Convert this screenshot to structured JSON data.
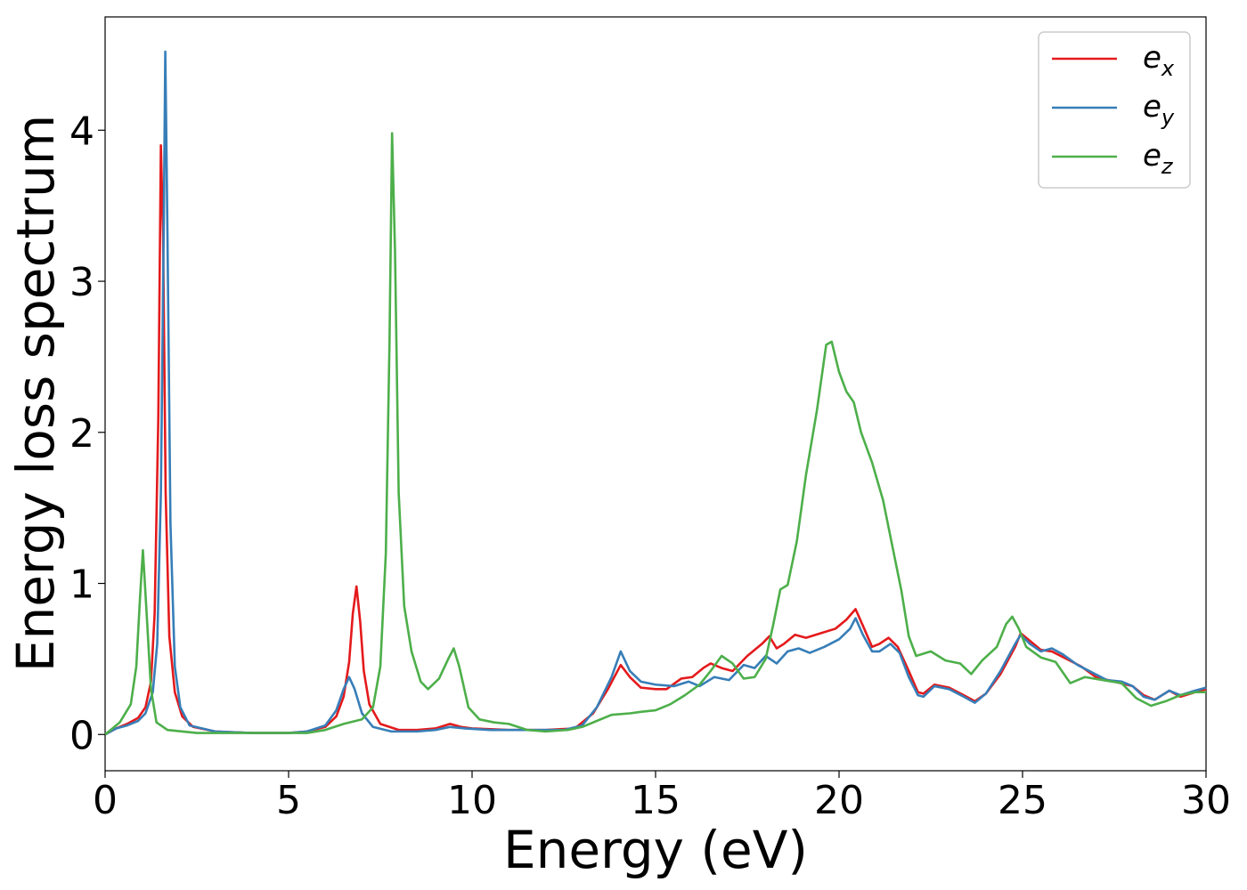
{
  "chart_data": {
    "type": "line",
    "title": "",
    "xlabel": "Energy (eV)",
    "ylabel": "Energy loss spectrum",
    "xlim": [
      0,
      30
    ],
    "ylim": [
      -0.24,
      4.75
    ],
    "xticks": [
      0,
      5,
      10,
      15,
      20,
      25,
      30
    ],
    "yticks": [
      0,
      1,
      2,
      3,
      4
    ],
    "grid": false,
    "legend_position": "top-right",
    "series": [
      {
        "name": "e_x",
        "label_base": "e",
        "label_sub": "x",
        "color": "#e41a1c",
        "points": [
          [
            0,
            0
          ],
          [
            0.3,
            0.04
          ],
          [
            0.6,
            0.07
          ],
          [
            0.9,
            0.11
          ],
          [
            1.1,
            0.18
          ],
          [
            1.25,
            0.35
          ],
          [
            1.35,
            0.8
          ],
          [
            1.45,
            2.1
          ],
          [
            1.52,
            3.9
          ],
          [
            1.58,
            3.3
          ],
          [
            1.65,
            1.6
          ],
          [
            1.75,
            0.65
          ],
          [
            1.9,
            0.28
          ],
          [
            2.1,
            0.12
          ],
          [
            2.4,
            0.05
          ],
          [
            3,
            0.02
          ],
          [
            4,
            0.01
          ],
          [
            5,
            0.01
          ],
          [
            5.5,
            0.02
          ],
          [
            6,
            0.05
          ],
          [
            6.3,
            0.12
          ],
          [
            6.5,
            0.25
          ],
          [
            6.65,
            0.48
          ],
          [
            6.75,
            0.8
          ],
          [
            6.85,
            0.98
          ],
          [
            6.95,
            0.75
          ],
          [
            7.05,
            0.42
          ],
          [
            7.2,
            0.2
          ],
          [
            7.5,
            0.07
          ],
          [
            8,
            0.03
          ],
          [
            8.5,
            0.03
          ],
          [
            9,
            0.04
          ],
          [
            9.4,
            0.07
          ],
          [
            9.7,
            0.05
          ],
          [
            10,
            0.04
          ],
          [
            11,
            0.03
          ],
          [
            12,
            0.03
          ],
          [
            12.8,
            0.04
          ],
          [
            13.3,
            0.14
          ],
          [
            13.7,
            0.3
          ],
          [
            14.05,
            0.46
          ],
          [
            14.3,
            0.38
          ],
          [
            14.6,
            0.31
          ],
          [
            15,
            0.3
          ],
          [
            15.3,
            0.3
          ],
          [
            15.7,
            0.37
          ],
          [
            16,
            0.38
          ],
          [
            16.3,
            0.44
          ],
          [
            16.5,
            0.47
          ],
          [
            16.8,
            0.44
          ],
          [
            17.1,
            0.42
          ],
          [
            17.5,
            0.52
          ],
          [
            17.9,
            0.6
          ],
          [
            18.1,
            0.65
          ],
          [
            18.3,
            0.57
          ],
          [
            18.5,
            0.6
          ],
          [
            18.8,
            0.66
          ],
          [
            19.1,
            0.64
          ],
          [
            19.5,
            0.67
          ],
          [
            19.9,
            0.7
          ],
          [
            20.2,
            0.76
          ],
          [
            20.45,
            0.83
          ],
          [
            20.65,
            0.72
          ],
          [
            20.9,
            0.58
          ],
          [
            21.1,
            0.6
          ],
          [
            21.35,
            0.64
          ],
          [
            21.6,
            0.58
          ],
          [
            21.9,
            0.42
          ],
          [
            22.15,
            0.28
          ],
          [
            22.3,
            0.27
          ],
          [
            22.6,
            0.33
          ],
          [
            23,
            0.31
          ],
          [
            23.4,
            0.26
          ],
          [
            23.7,
            0.22
          ],
          [
            24,
            0.27
          ],
          [
            24.4,
            0.4
          ],
          [
            24.8,
            0.58
          ],
          [
            24.95,
            0.67
          ],
          [
            25.2,
            0.62
          ],
          [
            25.5,
            0.56
          ],
          [
            25.8,
            0.55
          ],
          [
            26.2,
            0.5
          ],
          [
            26.6,
            0.45
          ],
          [
            27,
            0.38
          ],
          [
            27.5,
            0.35
          ],
          [
            28,
            0.32
          ],
          [
            28.3,
            0.26
          ],
          [
            28.6,
            0.23
          ],
          [
            29,
            0.29
          ],
          [
            29.3,
            0.25
          ],
          [
            29.7,
            0.28
          ],
          [
            30,
            0.3
          ]
        ]
      },
      {
        "name": "e_y",
        "label_base": "e",
        "label_sub": "y",
        "color": "#377eb8",
        "points": [
          [
            0,
            0
          ],
          [
            0.3,
            0.04
          ],
          [
            0.6,
            0.06
          ],
          [
            0.9,
            0.09
          ],
          [
            1.1,
            0.14
          ],
          [
            1.3,
            0.28
          ],
          [
            1.42,
            0.6
          ],
          [
            1.52,
            1.6
          ],
          [
            1.6,
            3.4
          ],
          [
            1.64,
            4.52
          ],
          [
            1.7,
            3.3
          ],
          [
            1.78,
            1.4
          ],
          [
            1.9,
            0.45
          ],
          [
            2.05,
            0.18
          ],
          [
            2.3,
            0.06
          ],
          [
            3,
            0.02
          ],
          [
            4,
            0.01
          ],
          [
            5,
            0.01
          ],
          [
            5.5,
            0.02
          ],
          [
            6,
            0.06
          ],
          [
            6.3,
            0.16
          ],
          [
            6.5,
            0.3
          ],
          [
            6.65,
            0.38
          ],
          [
            6.8,
            0.3
          ],
          [
            7,
            0.14
          ],
          [
            7.3,
            0.05
          ],
          [
            7.8,
            0.02
          ],
          [
            8.5,
            0.02
          ],
          [
            9,
            0.03
          ],
          [
            9.4,
            0.05
          ],
          [
            9.8,
            0.04
          ],
          [
            10.5,
            0.03
          ],
          [
            11.5,
            0.03
          ],
          [
            12.5,
            0.03
          ],
          [
            13,
            0.06
          ],
          [
            13.4,
            0.18
          ],
          [
            13.8,
            0.38
          ],
          [
            14.05,
            0.55
          ],
          [
            14.3,
            0.42
          ],
          [
            14.6,
            0.35
          ],
          [
            15,
            0.33
          ],
          [
            15.5,
            0.32
          ],
          [
            15.9,
            0.35
          ],
          [
            16.2,
            0.32
          ],
          [
            16.6,
            0.38
          ],
          [
            17,
            0.36
          ],
          [
            17.4,
            0.46
          ],
          [
            17.7,
            0.44
          ],
          [
            18,
            0.52
          ],
          [
            18.3,
            0.47
          ],
          [
            18.6,
            0.55
          ],
          [
            18.9,
            0.57
          ],
          [
            19.2,
            0.54
          ],
          [
            19.6,
            0.58
          ],
          [
            20,
            0.63
          ],
          [
            20.3,
            0.7
          ],
          [
            20.45,
            0.77
          ],
          [
            20.65,
            0.66
          ],
          [
            20.9,
            0.55
          ],
          [
            21.1,
            0.55
          ],
          [
            21.4,
            0.6
          ],
          [
            21.65,
            0.54
          ],
          [
            21.9,
            0.38
          ],
          [
            22.15,
            0.26
          ],
          [
            22.3,
            0.25
          ],
          [
            22.6,
            0.32
          ],
          [
            23,
            0.3
          ],
          [
            23.4,
            0.25
          ],
          [
            23.7,
            0.21
          ],
          [
            24,
            0.27
          ],
          [
            24.4,
            0.42
          ],
          [
            24.8,
            0.6
          ],
          [
            24.95,
            0.66
          ],
          [
            25.2,
            0.6
          ],
          [
            25.5,
            0.55
          ],
          [
            25.8,
            0.57
          ],
          [
            26.1,
            0.53
          ],
          [
            26.5,
            0.46
          ],
          [
            26.9,
            0.41
          ],
          [
            27.3,
            0.36
          ],
          [
            27.7,
            0.35
          ],
          [
            28,
            0.32
          ],
          [
            28.3,
            0.25
          ],
          [
            28.6,
            0.23
          ],
          [
            29,
            0.29
          ],
          [
            29.3,
            0.26
          ],
          [
            29.7,
            0.29
          ],
          [
            30,
            0.31
          ]
        ]
      },
      {
        "name": "e_z",
        "label_base": "e",
        "label_sub": "z",
        "color": "#4daf4a",
        "points": [
          [
            0,
            0
          ],
          [
            0.4,
            0.08
          ],
          [
            0.7,
            0.2
          ],
          [
            0.85,
            0.45
          ],
          [
            0.95,
            0.9
          ],
          [
            1.03,
            1.22
          ],
          [
            1.12,
            0.85
          ],
          [
            1.25,
            0.3
          ],
          [
            1.4,
            0.08
          ],
          [
            1.7,
            0.03
          ],
          [
            2.5,
            0.01
          ],
          [
            4,
            0.01
          ],
          [
            5.5,
            0.01
          ],
          [
            6,
            0.03
          ],
          [
            6.5,
            0.07
          ],
          [
            7,
            0.1
          ],
          [
            7.3,
            0.18
          ],
          [
            7.5,
            0.45
          ],
          [
            7.65,
            1.2
          ],
          [
            7.75,
            2.6
          ],
          [
            7.82,
            3.98
          ],
          [
            7.9,
            3.2
          ],
          [
            8,
            1.6
          ],
          [
            8.15,
            0.85
          ],
          [
            8.35,
            0.55
          ],
          [
            8.6,
            0.35
          ],
          [
            8.8,
            0.3
          ],
          [
            9.1,
            0.37
          ],
          [
            9.35,
            0.5
          ],
          [
            9.5,
            0.57
          ],
          [
            9.65,
            0.45
          ],
          [
            9.9,
            0.18
          ],
          [
            10.2,
            0.1
          ],
          [
            10.6,
            0.08
          ],
          [
            11,
            0.07
          ],
          [
            11.5,
            0.03
          ],
          [
            12,
            0.02
          ],
          [
            12.6,
            0.03
          ],
          [
            13,
            0.05
          ],
          [
            13.4,
            0.09
          ],
          [
            13.8,
            0.13
          ],
          [
            14.3,
            0.14
          ],
          [
            14.6,
            0.15
          ],
          [
            15,
            0.16
          ],
          [
            15.4,
            0.2
          ],
          [
            15.8,
            0.26
          ],
          [
            16.2,
            0.33
          ],
          [
            16.5,
            0.42
          ],
          [
            16.8,
            0.52
          ],
          [
            17.1,
            0.47
          ],
          [
            17.4,
            0.37
          ],
          [
            17.7,
            0.38
          ],
          [
            18,
            0.5
          ],
          [
            18.2,
            0.72
          ],
          [
            18.4,
            0.96
          ],
          [
            18.6,
            0.99
          ],
          [
            18.85,
            1.28
          ],
          [
            19.1,
            1.72
          ],
          [
            19.4,
            2.15
          ],
          [
            19.65,
            2.58
          ],
          [
            19.8,
            2.6
          ],
          [
            20,
            2.4
          ],
          [
            20.2,
            2.27
          ],
          [
            20.4,
            2.2
          ],
          [
            20.6,
            2.0
          ],
          [
            20.9,
            1.8
          ],
          [
            21.2,
            1.55
          ],
          [
            21.45,
            1.25
          ],
          [
            21.7,
            0.95
          ],
          [
            21.9,
            0.65
          ],
          [
            22.1,
            0.52
          ],
          [
            22.5,
            0.55
          ],
          [
            22.9,
            0.49
          ],
          [
            23.3,
            0.47
          ],
          [
            23.6,
            0.4
          ],
          [
            23.9,
            0.49
          ],
          [
            24.3,
            0.58
          ],
          [
            24.55,
            0.73
          ],
          [
            24.72,
            0.78
          ],
          [
            24.9,
            0.7
          ],
          [
            25.1,
            0.58
          ],
          [
            25.5,
            0.51
          ],
          [
            25.9,
            0.48
          ],
          [
            26.3,
            0.34
          ],
          [
            26.7,
            0.38
          ],
          [
            27.2,
            0.36
          ],
          [
            27.7,
            0.34
          ],
          [
            28.1,
            0.24
          ],
          [
            28.5,
            0.19
          ],
          [
            28.9,
            0.22
          ],
          [
            29.3,
            0.26
          ],
          [
            29.7,
            0.28
          ],
          [
            30,
            0.28
          ]
        ]
      }
    ]
  }
}
